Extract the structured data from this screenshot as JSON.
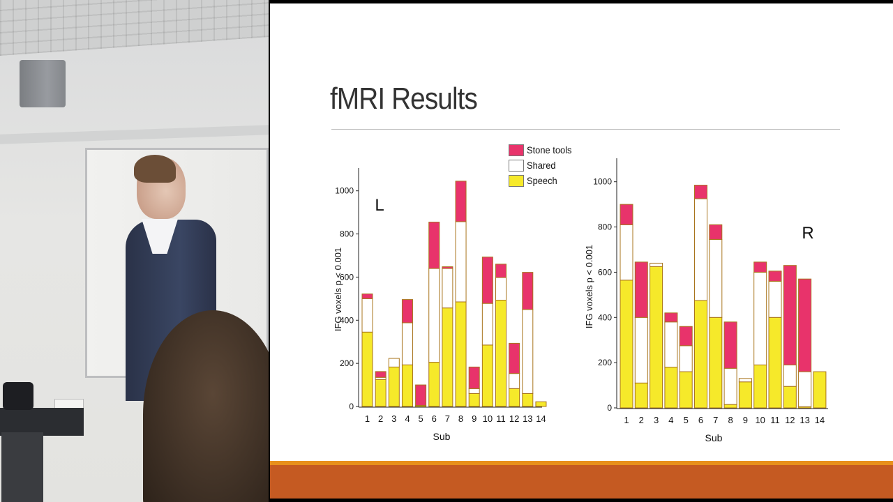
{
  "slide": {
    "title": "fMRI Results"
  },
  "colors": {
    "speech": "#f6e92a",
    "shared": "#ffffff",
    "stone_tools": "#e8336b",
    "bar_border": "#a8741c",
    "bottom_bar": "#c55a22",
    "bottom_bar_accent": "#e8901c"
  },
  "legend": {
    "items": [
      {
        "label": "Stone tools",
        "color": "#e8336b"
      },
      {
        "label": "Shared",
        "color": "#ffffff"
      },
      {
        "label": "Speech",
        "color": "#f6e92a"
      }
    ]
  },
  "chart_data": [
    {
      "type": "bar",
      "stacked": true,
      "panel_label": "L",
      "xlabel": "Sub",
      "ylabel": "IFG voxels p < 0.001",
      "categories": [
        "1",
        "2",
        "3",
        "4",
        "5",
        "6",
        "7",
        "8",
        "9",
        "10",
        "11",
        "12",
        "13",
        "14"
      ],
      "yticks": [
        0,
        200,
        400,
        600,
        800,
        1000
      ],
      "ylim": [
        0,
        1100
      ],
      "series": [
        {
          "name": "Speech",
          "values": [
            345,
            125,
            183,
            193,
            5,
            205,
            457,
            485,
            60,
            285,
            493,
            83,
            60,
            22
          ]
        },
        {
          "name": "Shared",
          "values": [
            155,
            10,
            40,
            195,
            0,
            435,
            183,
            372,
            23,
            193,
            105,
            70,
            390,
            0
          ]
        },
        {
          "name": "Stone tools",
          "values": [
            22,
            27,
            0,
            108,
            95,
            215,
            8,
            188,
            100,
            215,
            62,
            140,
            172,
            0
          ]
        }
      ]
    },
    {
      "type": "bar",
      "stacked": true,
      "panel_label": "R",
      "xlabel": "Sub",
      "ylabel": "IFG voxels p < 0.001",
      "categories": [
        "1",
        "2",
        "3",
        "4",
        "5",
        "6",
        "7",
        "8",
        "9",
        "10",
        "11",
        "12",
        "13",
        "14"
      ],
      "yticks": [
        0,
        200,
        400,
        600,
        800,
        1000
      ],
      "ylim": [
        0,
        1100
      ],
      "series": [
        {
          "name": "Speech",
          "values": [
            565,
            110,
            625,
            180,
            160,
            475,
            400,
            15,
            115,
            190,
            400,
            95,
            5,
            160
          ]
        },
        {
          "name": "Shared",
          "values": [
            245,
            290,
            15,
            200,
            115,
            450,
            345,
            160,
            15,
            410,
            160,
            95,
            155,
            0
          ]
        },
        {
          "name": "Stone tools",
          "values": [
            90,
            245,
            0,
            40,
            85,
            60,
            65,
            205,
            0,
            45,
            45,
            440,
            410,
            0
          ]
        }
      ]
    }
  ]
}
